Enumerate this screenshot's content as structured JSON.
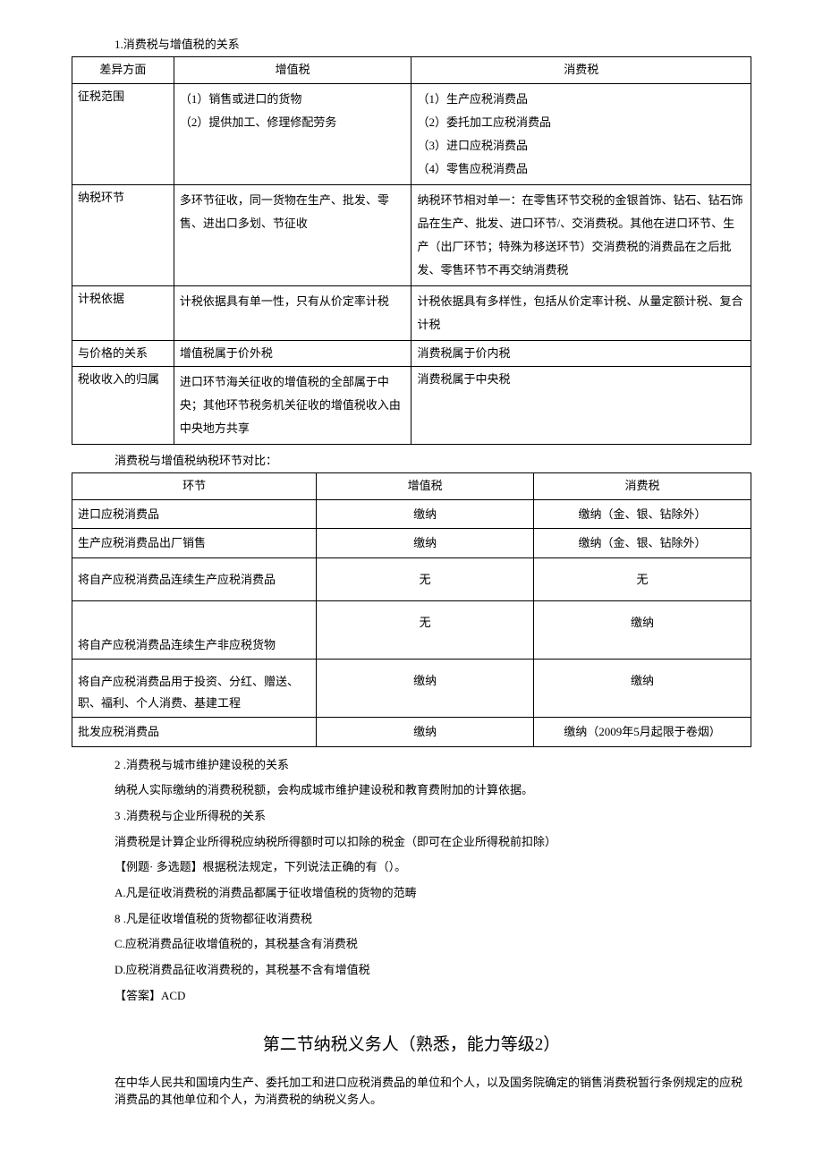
{
  "heading1": "1.消费税与增值税的关系",
  "table1": {
    "headers": [
      "差异方面",
      "增值税",
      "消费税"
    ],
    "rows": [
      {
        "aspect": "征税范围",
        "vat": "（1）销售或进口的货物\n（2）提供加工、修理修配劳务",
        "ct": "（1）生产应税消费品\n（2）委托加工应税消费品\n（3）进口应税消费品\n（4）零售应税消费品"
      },
      {
        "aspect": "纳税环节",
        "vat": "多环节征收，同一货物在生产、批发、零售、进出口多划、节征收",
        "ct": "纳税环节相对单一：在零售环节交税的金银首饰、钻石、钻石饰品在生产、批发、进口环节/、交消费税。其他在进口环节、生产（出厂环节；特殊为移送环节）交消费税的消费品在之后批发、零售环节不再交纳消费税"
      },
      {
        "aspect": "计税依据",
        "vat": "计税依据具有单一性，只有从价定率计税",
        "ct": "计税依据具有多样性，包括从价定率计税、从量定额计税、复合计税"
      },
      {
        "aspect": "与价格的关系",
        "vat": "增值税属于价外税",
        "ct": "消费税属于价内税"
      },
      {
        "aspect": "税收收入的归属",
        "vat": "进口环节海关征收的增值税的全部属于中央；其他环节税务机关征收的增值税收入由中央地方共享",
        "ct": "消费税属于中央税"
      }
    ]
  },
  "subheading": "消费税与增值税纳税环节对比：",
  "table2": {
    "headers": [
      "环节",
      "增值税",
      "消费税"
    ],
    "rows": [
      {
        "stage": "进口应税消费品",
        "vat": "缴纳",
        "ct": "缴纳（金、银、钻除外）",
        "tall": false
      },
      {
        "stage": "生产应税消费品出厂销售",
        "vat": "缴纳",
        "ct": "缴纳（金、银、钻除外）",
        "tall": false
      },
      {
        "stage": "将自产应税消费品连续生产应税消费品",
        "vat": "无",
        "ct": "无",
        "tall": true
      },
      {
        "stage": "将自产应税消费品连续生产非应税货物",
        "vat": "无",
        "ct": "缴纳",
        "tall": true,
        "bottom": true
      },
      {
        "stage": "将自产应税消费品用于投资、分红、赠送、职、福利、个人消费、基建工程",
        "vat": "缴纳",
        "ct": "缴纳",
        "tall": true,
        "bottom2": true
      },
      {
        "stage": "批发应税消费品",
        "vat": "缴纳",
        "ct": "缴纳（2009年5月起限于卷烟）",
        "tall": false
      }
    ]
  },
  "paras": [
    "2 .消费税与城市维护建设税的关系",
    "纳税人实际缴纳的消费税税额，会构成城市维护建设税和教育费附加的计算依据。",
    "3 .消费税与企业所得税的关系",
    "消费税是计算企业所得税应纳税所得额时可以扣除的税金（即可在企业所得税前扣除）",
    "【例题· 多选题】根据税法规定，下列说法正确的有（）。",
    "A.凡是征收消费税的消费品都属于征收增值税的货物的范畴",
    "8 .凡是征收增值税的货物都征收消费税",
    "C.应税消费品征收增值税的，其税基含有消费税",
    "D.应税消费品征收消费税的，其税基不含有增值税",
    "【答案】ACD"
  ],
  "section_title": "第二节纳税义务人（熟悉，能力等级2）",
  "final_para": "在中华人民共和国境内生产、委托加工和进口应税消费品的单位和个人，以及国务院确定的销售消费税暂行条例规定的应税消费品的其他单位和个人，为消费税的纳税义务人。"
}
